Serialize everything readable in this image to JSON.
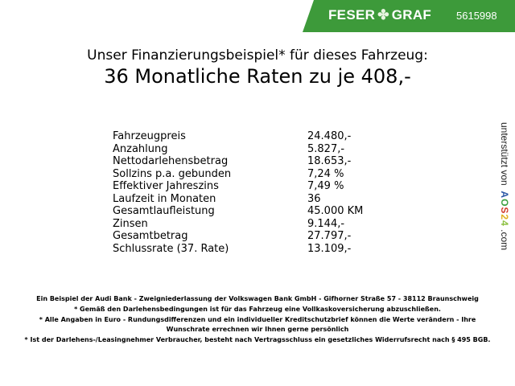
{
  "header": {
    "brand": "FESER",
    "brand2": "GRAF",
    "code": "5615998",
    "color": "#3d9a3a"
  },
  "title": {
    "line1": "Unser Finanzierungsbeispiel* für dieses Fahrzeug:",
    "line2": "36 Monatliche Raten zu je 408,-"
  },
  "rows": [
    {
      "label": "Fahrzeugpreis",
      "value": "24.480,-"
    },
    {
      "label": "Anzahlung",
      "value": "5.827,-"
    },
    {
      "label": "Nettodarlehensbetrag",
      "value": "18.653,-"
    },
    {
      "label": "Sollzins p.a. gebunden",
      "value": "7,24 %"
    },
    {
      "label": "Effektiver Jahreszins",
      "value": "7,49 %"
    },
    {
      "label": "Laufzeit in Monaten",
      "value": "36"
    },
    {
      "label": "Gesamtlaufleistung",
      "value": "45.000 KM"
    },
    {
      "label": "Zinsen",
      "value": "9.144,-"
    },
    {
      "label": "Gesamtbetrag",
      "value": "27.797,-"
    },
    {
      "label": "Schlussrate (37. Rate)",
      "value": "13.109,-"
    }
  ],
  "side": {
    "text": "unterstützt von",
    "logo": "AOS24",
    "suffix": ".com"
  },
  "footer": [
    "Ein Beispiel der Audi Bank - Zweigniederlassung der Volkswagen Bank GmbH - Gifhorner Straße 57 - 38112 Braunschweig",
    "* Gemäß den Darlehensbedingungen ist für das Fahrzeug eine Vollkaskoversicherung abzuschließen.",
    "* Alle Angaben in Euro - Rundungsdifferenzen und ein individueller Kreditschutzbrief können die Werte verändern - Ihre Wunschrate errechnen wir Ihnen gerne persönlich",
    "* Ist der Darlehens-/Leasingnehmer Verbraucher, besteht nach Vertragsschluss ein gesetzliches Widerrufsrecht nach § 495 BGB."
  ]
}
